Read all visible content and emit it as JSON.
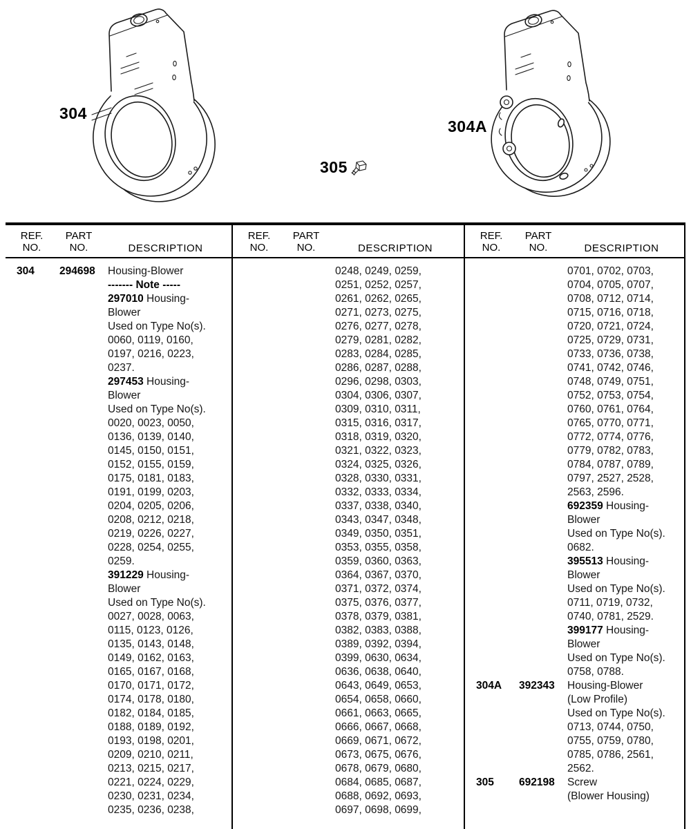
{
  "figures": {
    "fig304_label": "304",
    "fig304a_label": "304A",
    "fig305_label": "305"
  },
  "table": {
    "headers": {
      "ref1": "REF.",
      "ref2": "NO.",
      "part1": "PART",
      "part2": "NO.",
      "desc": "DESCRIPTION"
    },
    "columns": [
      {
        "lines": [
          {
            "r": "304",
            "p": "294698",
            "s": [
              [
                "Housing-Blower",
                0
              ]
            ]
          },
          {
            "s": [
              [
                "------- Note -----",
                1
              ]
            ]
          },
          {
            "s": [
              [
                "297010",
                1
              ],
              [
                " Housing-",
                0
              ]
            ]
          },
          {
            "s": [
              [
                "Blower",
                0
              ]
            ]
          },
          {
            "s": [
              [
                "Used on Type No(s).",
                0
              ]
            ]
          },
          {
            "s": [
              [
                "0060, 0119, 0160,",
                0
              ]
            ]
          },
          {
            "s": [
              [
                "0197, 0216, 0223,",
                0
              ]
            ]
          },
          {
            "s": [
              [
                "0237.",
                0
              ]
            ]
          },
          {
            "s": [
              [
                "297453",
                1
              ],
              [
                " Housing-",
                0
              ]
            ]
          },
          {
            "s": [
              [
                "Blower",
                0
              ]
            ]
          },
          {
            "s": [
              [
                "Used on Type No(s).",
                0
              ]
            ]
          },
          {
            "s": [
              [
                "0020, 0023, 0050,",
                0
              ]
            ]
          },
          {
            "s": [
              [
                "0136, 0139, 0140,",
                0
              ]
            ]
          },
          {
            "s": [
              [
                "0145, 0150, 0151,",
                0
              ]
            ]
          },
          {
            "s": [
              [
                "0152, 0155, 0159,",
                0
              ]
            ]
          },
          {
            "s": [
              [
                "0175, 0181, 0183,",
                0
              ]
            ]
          },
          {
            "s": [
              [
                "0191, 0199, 0203,",
                0
              ]
            ]
          },
          {
            "s": [
              [
                "0204, 0205, 0206,",
                0
              ]
            ]
          },
          {
            "s": [
              [
                "0208, 0212, 0218,",
                0
              ]
            ]
          },
          {
            "s": [
              [
                "0219, 0226, 0227,",
                0
              ]
            ]
          },
          {
            "s": [
              [
                "0228, 0254, 0255,",
                0
              ]
            ]
          },
          {
            "s": [
              [
                "0259.",
                0
              ]
            ]
          },
          {
            "s": [
              [
                "391229",
                1
              ],
              [
                " Housing-",
                0
              ]
            ]
          },
          {
            "s": [
              [
                "Blower",
                0
              ]
            ]
          },
          {
            "s": [
              [
                "Used on Type No(s).",
                0
              ]
            ]
          },
          {
            "s": [
              [
                "0027, 0028, 0063,",
                0
              ]
            ]
          },
          {
            "s": [
              [
                "0115, 0123, 0126,",
                0
              ]
            ]
          },
          {
            "s": [
              [
                "0135, 0143, 0148,",
                0
              ]
            ]
          },
          {
            "s": [
              [
                "0149, 0162, 0163,",
                0
              ]
            ]
          },
          {
            "s": [
              [
                "0165, 0167, 0168,",
                0
              ]
            ]
          },
          {
            "s": [
              [
                "0170, 0171, 0172,",
                0
              ]
            ]
          },
          {
            "s": [
              [
                "0174, 0178, 0180,",
                0
              ]
            ]
          },
          {
            "s": [
              [
                "0182, 0184, 0185,",
                0
              ]
            ]
          },
          {
            "s": [
              [
                "0188, 0189, 0192,",
                0
              ]
            ]
          },
          {
            "s": [
              [
                "0193, 0198, 0201,",
                0
              ]
            ]
          },
          {
            "s": [
              [
                "0209, 0210, 0211,",
                0
              ]
            ]
          },
          {
            "s": [
              [
                "0213, 0215, 0217,",
                0
              ]
            ]
          },
          {
            "s": [
              [
                "0221, 0224, 0229,",
                0
              ]
            ]
          },
          {
            "s": [
              [
                "0230, 0231, 0234,",
                0
              ]
            ]
          },
          {
            "s": [
              [
                "0235, 0236, 0238,",
                0
              ]
            ]
          }
        ]
      },
      {
        "lines": [
          {
            "s": [
              [
                "0248, 0249, 0259,",
                0
              ]
            ]
          },
          {
            "s": [
              [
                "0251, 0252, 0257,",
                0
              ]
            ]
          },
          {
            "s": [
              [
                "0261, 0262, 0265,",
                0
              ]
            ]
          },
          {
            "s": [
              [
                "0271, 0273, 0275,",
                0
              ]
            ]
          },
          {
            "s": [
              [
                "0276, 0277, 0278,",
                0
              ]
            ]
          },
          {
            "s": [
              [
                "0279, 0281, 0282,",
                0
              ]
            ]
          },
          {
            "s": [
              [
                "0283, 0284, 0285,",
                0
              ]
            ]
          },
          {
            "s": [
              [
                "0286, 0287, 0288,",
                0
              ]
            ]
          },
          {
            "s": [
              [
                "0296, 0298, 0303,",
                0
              ]
            ]
          },
          {
            "s": [
              [
                "0304, 0306, 0307,",
                0
              ]
            ]
          },
          {
            "s": [
              [
                "0309, 0310, 0311,",
                0
              ]
            ]
          },
          {
            "s": [
              [
                "0315, 0316, 0317,",
                0
              ]
            ]
          },
          {
            "s": [
              [
                "0318, 0319, 0320,",
                0
              ]
            ]
          },
          {
            "s": [
              [
                "0321, 0322, 0323,",
                0
              ]
            ]
          },
          {
            "s": [
              [
                "0324, 0325, 0326,",
                0
              ]
            ]
          },
          {
            "s": [
              [
                "0328, 0330, 0331,",
                0
              ]
            ]
          },
          {
            "s": [
              [
                "0332, 0333, 0334,",
                0
              ]
            ]
          },
          {
            "s": [
              [
                "0337, 0338, 0340,",
                0
              ]
            ]
          },
          {
            "s": [
              [
                "0343, 0347, 0348,",
                0
              ]
            ]
          },
          {
            "s": [
              [
                "0349, 0350, 0351,",
                0
              ]
            ]
          },
          {
            "s": [
              [
                "0353, 0355, 0358,",
                0
              ]
            ]
          },
          {
            "s": [
              [
                "0359, 0360, 0363,",
                0
              ]
            ]
          },
          {
            "s": [
              [
                "0364, 0367, 0370,",
                0
              ]
            ]
          },
          {
            "s": [
              [
                "0371, 0372, 0374,",
                0
              ]
            ]
          },
          {
            "s": [
              [
                "0375, 0376, 0377,",
                0
              ]
            ]
          },
          {
            "s": [
              [
                "0378, 0379, 0381,",
                0
              ]
            ]
          },
          {
            "s": [
              [
                "0382, 0383, 0388,",
                0
              ]
            ]
          },
          {
            "s": [
              [
                "0389, 0392, 0394,",
                0
              ]
            ]
          },
          {
            "s": [
              [
                "0399, 0630, 0634,",
                0
              ]
            ]
          },
          {
            "s": [
              [
                "0636, 0638, 0640,",
                0
              ]
            ]
          },
          {
            "s": [
              [
                "0643, 0649, 0653,",
                0
              ]
            ]
          },
          {
            "s": [
              [
                "0654, 0658, 0660,",
                0
              ]
            ]
          },
          {
            "s": [
              [
                "0661, 0663, 0665,",
                0
              ]
            ]
          },
          {
            "s": [
              [
                "0666, 0667, 0668,",
                0
              ]
            ]
          },
          {
            "s": [
              [
                "0669, 0671, 0672,",
                0
              ]
            ]
          },
          {
            "s": [
              [
                "0673, 0675, 0676,",
                0
              ]
            ]
          },
          {
            "s": [
              [
                "0678, 0679, 0680,",
                0
              ]
            ]
          },
          {
            "s": [
              [
                "0684, 0685, 0687,",
                0
              ]
            ]
          },
          {
            "s": [
              [
                "0688, 0692, 0693,",
                0
              ]
            ]
          },
          {
            "s": [
              [
                "0697, 0698, 0699,",
                0
              ]
            ]
          }
        ]
      },
      {
        "lines": [
          {
            "s": [
              [
                "0701, 0702, 0703,",
                0
              ]
            ]
          },
          {
            "s": [
              [
                "0704, 0705, 0707,",
                0
              ]
            ]
          },
          {
            "s": [
              [
                "0708, 0712, 0714,",
                0
              ]
            ]
          },
          {
            "s": [
              [
                "0715, 0716, 0718,",
                0
              ]
            ]
          },
          {
            "s": [
              [
                "0720, 0721, 0724,",
                0
              ]
            ]
          },
          {
            "s": [
              [
                "0725, 0729, 0731,",
                0
              ]
            ]
          },
          {
            "s": [
              [
                "0733, 0736, 0738,",
                0
              ]
            ]
          },
          {
            "s": [
              [
                "0741, 0742, 0746,",
                0
              ]
            ]
          },
          {
            "s": [
              [
                "0748, 0749, 0751,",
                0
              ]
            ]
          },
          {
            "s": [
              [
                "0752, 0753, 0754,",
                0
              ]
            ]
          },
          {
            "s": [
              [
                "0760, 0761, 0764,",
                0
              ]
            ]
          },
          {
            "s": [
              [
                "0765, 0770, 0771,",
                0
              ]
            ]
          },
          {
            "s": [
              [
                "0772, 0774, 0776,",
                0
              ]
            ]
          },
          {
            "s": [
              [
                "0779, 0782, 0783,",
                0
              ]
            ]
          },
          {
            "s": [
              [
                "0784, 0787, 0789,",
                0
              ]
            ]
          },
          {
            "s": [
              [
                "0797, 2527, 2528,",
                0
              ]
            ]
          },
          {
            "s": [
              [
                "2563, 2596.",
                0
              ]
            ]
          },
          {
            "s": [
              [
                "692359",
                1
              ],
              [
                " Housing-",
                0
              ]
            ]
          },
          {
            "s": [
              [
                "Blower",
                0
              ]
            ]
          },
          {
            "s": [
              [
                "Used on Type No(s).",
                0
              ]
            ]
          },
          {
            "s": [
              [
                "0682.",
                0
              ]
            ]
          },
          {
            "s": [
              [
                "395513",
                1
              ],
              [
                " Housing-",
                0
              ]
            ]
          },
          {
            "s": [
              [
                "Blower",
                0
              ]
            ]
          },
          {
            "s": [
              [
                "Used on Type No(s).",
                0
              ]
            ]
          },
          {
            "s": [
              [
                "0711, 0719, 0732,",
                0
              ]
            ]
          },
          {
            "s": [
              [
                "0740, 0781, 2529.",
                0
              ]
            ]
          },
          {
            "s": [
              [
                "399177",
                1
              ],
              [
                " Housing-",
                0
              ]
            ]
          },
          {
            "s": [
              [
                "Blower",
                0
              ]
            ]
          },
          {
            "s": [
              [
                "Used on Type No(s).",
                0
              ]
            ]
          },
          {
            "s": [
              [
                "0758, 0788.",
                0
              ]
            ]
          },
          {
            "r": "304A",
            "p": "392343",
            "s": [
              [
                "Housing-Blower",
                0
              ]
            ]
          },
          {
            "s": [
              [
                "(Low Profile)",
                0
              ]
            ]
          },
          {
            "s": [
              [
                "Used on Type No(s).",
                0
              ]
            ]
          },
          {
            "s": [
              [
                "0713, 0744, 0750,",
                0
              ]
            ]
          },
          {
            "s": [
              [
                "0755, 0759, 0780,",
                0
              ]
            ]
          },
          {
            "s": [
              [
                "0785, 0786, 2561,",
                0
              ]
            ]
          },
          {
            "s": [
              [
                "2562.",
                0
              ]
            ]
          },
          {
            "r": "305",
            "p": "692198",
            "s": [
              [
                "Screw",
                0
              ]
            ]
          },
          {
            "s": [
              [
                "(Blower Housing)",
                0
              ]
            ]
          }
        ]
      }
    ]
  }
}
